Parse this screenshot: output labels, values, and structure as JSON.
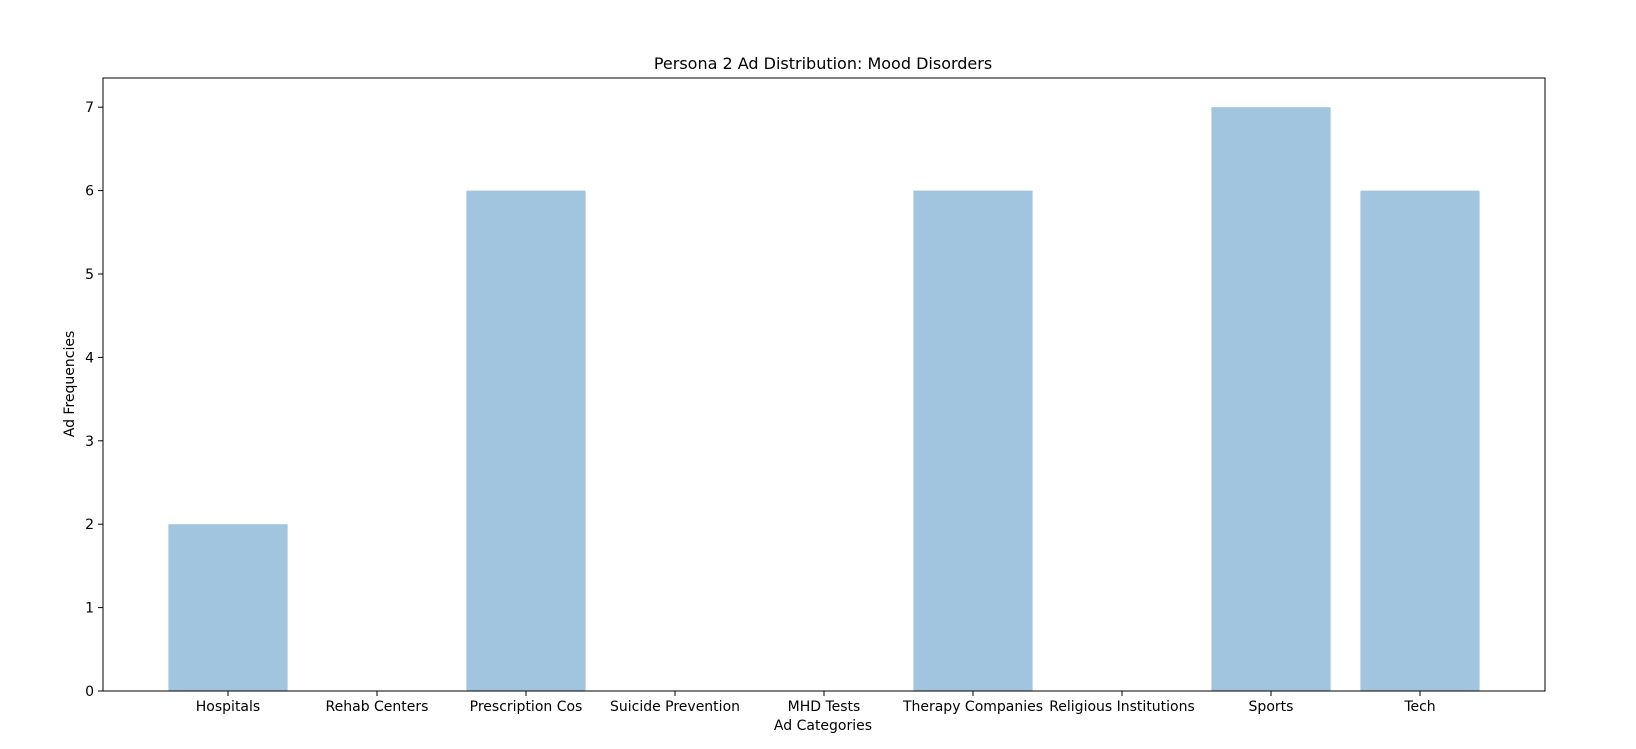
{
  "chart_data": {
    "type": "bar",
    "title": "Persona 2 Ad Distribution: Mood Disorders",
    "xlabel": "Ad Categories",
    "ylabel": "Ad Frequencies",
    "categories": [
      "Hospitals",
      "Rehab Centers",
      "Prescription Cos",
      "Suicide Prevention",
      "MHD Tests",
      "Therapy Companies",
      "Religious Institutions",
      "Sports",
      "Tech"
    ],
    "values": [
      2,
      0,
      6,
      0,
      0,
      6,
      0,
      7,
      6
    ],
    "ylim": [
      0,
      7.35
    ],
    "yticks": [
      0,
      1,
      2,
      3,
      4,
      5,
      6,
      7
    ],
    "grid": false,
    "legend": "none",
    "bar_color": "#a1c5de",
    "axis_color": "#000000",
    "background": "#ffffff"
  }
}
